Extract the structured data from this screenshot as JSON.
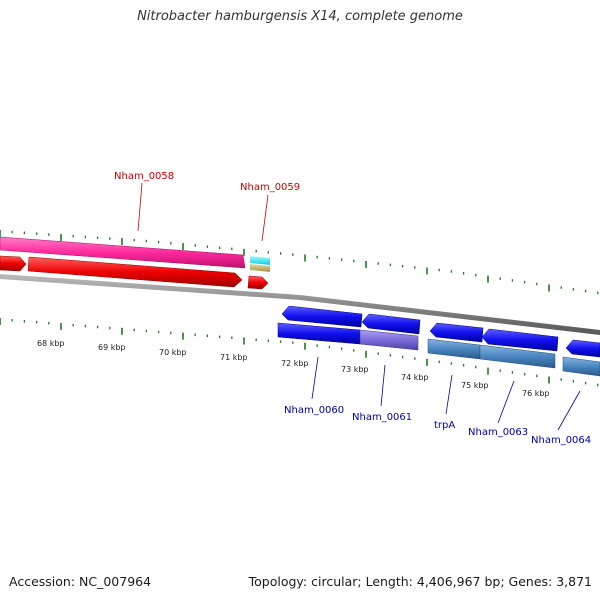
{
  "title": "Nitrobacter hamburgensis X14, complete genome",
  "footer": {
    "accession": "Accession: NC_007964",
    "summary": "Topology: circular; Length: 4,406,967 bp; Genes: 3,871"
  },
  "colors": {
    "forward_label": "#cc0000",
    "reverse_label": "#0000aa",
    "tick": "#227722",
    "backbone": "#888888"
  },
  "kbp_labels": [
    "68 kbp",
    "69 kbp",
    "70 kbp",
    "71 kbp",
    "72 kbp",
    "73 kbp",
    "74 kbp",
    "75 kbp",
    "76 kbp"
  ],
  "genes": [
    {
      "label": "Nham_0058",
      "strand": "forward"
    },
    {
      "label": "Nham_0059",
      "strand": "forward"
    },
    {
      "label": "Nham_0060",
      "strand": "reverse"
    },
    {
      "label": "Nham_0061",
      "strand": "reverse"
    },
    {
      "label": "trpA",
      "strand": "reverse"
    },
    {
      "label": "Nham_0063",
      "strand": "reverse"
    },
    {
      "label": "Nham_0064",
      "strand": "reverse"
    }
  ]
}
